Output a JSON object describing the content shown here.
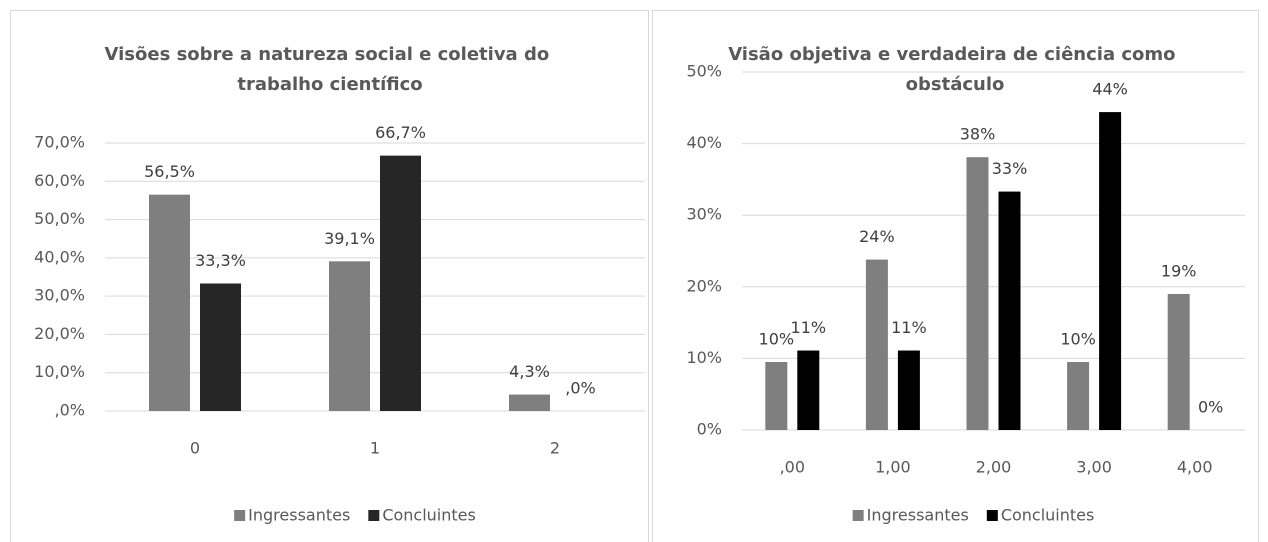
{
  "chart_data": [
    {
      "type": "bar",
      "title": "Visões sobre a natureza social e coletiva do trabalho científico",
      "categories": [
        "0",
        "1",
        "2"
      ],
      "series": [
        {
          "name": "Ingressantes",
          "color": "#7f7f7f",
          "values": [
            56.5,
            39.1,
            4.3
          ],
          "value_labels": [
            "56,5%",
            "39,1%",
            "4,3%"
          ]
        },
        {
          "name": "Concluintes",
          "color": "#262626",
          "values": [
            33.3,
            66.7,
            0
          ],
          "value_labels": [
            "33,3%",
            "66,7%",
            ",0%"
          ]
        }
      ],
      "ylim": [
        0,
        70
      ],
      "yticks": [
        {
          "value": 0,
          "label": ",0%"
        },
        {
          "value": 10,
          "label": "10,0%"
        },
        {
          "value": 20,
          "label": "20,0%"
        },
        {
          "value": 30,
          "label": "30,0%"
        },
        {
          "value": 40,
          "label": "40,0%"
        },
        {
          "value": 50,
          "label": "50,0%"
        },
        {
          "value": 60,
          "label": "60,0%"
        },
        {
          "value": 70,
          "label": "70,0%"
        }
      ],
      "grid": true,
      "legend": "bottom"
    },
    {
      "type": "bar",
      "title": "Visão objetiva e verdadeira de ciência como obstáculo",
      "categories": [
        ",00",
        "1,00",
        "2,00",
        "3,00",
        "4,00"
      ],
      "series": [
        {
          "name": "Ingressantes",
          "color": "#7f7f7f",
          "values": [
            9.5,
            23.8,
            38.1,
            9.5,
            19.0
          ],
          "value_labels": [
            "10%",
            "24%",
            "38%",
            "10%",
            "19%"
          ]
        },
        {
          "name": "Concluintes",
          "color": "#000000",
          "values": [
            11.1,
            11.1,
            33.3,
            44.4,
            0
          ],
          "value_labels": [
            "11%",
            "11%",
            "33%",
            "44%",
            "0%"
          ]
        }
      ],
      "ylim": [
        0,
        50
      ],
      "yticks": [
        {
          "value": 0,
          "label": "0%"
        },
        {
          "value": 10,
          "label": "10%"
        },
        {
          "value": 20,
          "label": "20%"
        },
        {
          "value": 30,
          "label": "30%"
        },
        {
          "value": 40,
          "label": "40%"
        },
        {
          "value": 50,
          "label": "50%"
        }
      ],
      "grid": true,
      "legend": "bottom"
    }
  ]
}
